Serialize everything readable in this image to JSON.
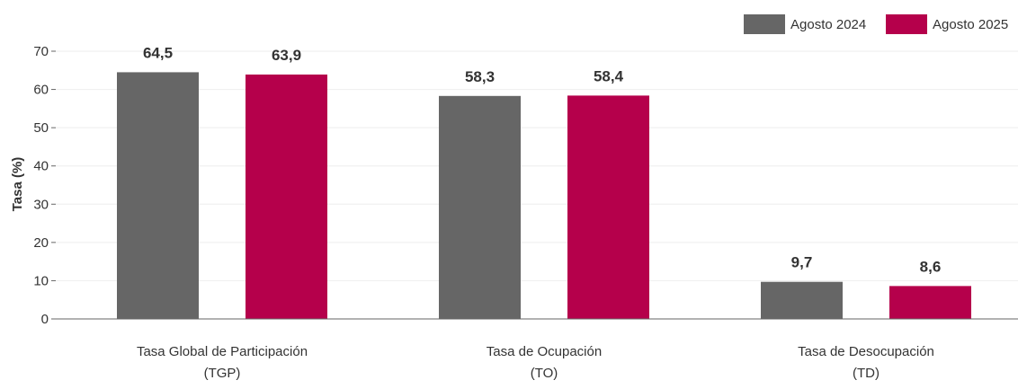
{
  "chart_data": {
    "type": "bar",
    "ylabel": "Tasa (%)",
    "ylim": [
      0,
      70
    ],
    "yticks": [
      0,
      10,
      20,
      30,
      40,
      50,
      60,
      70
    ],
    "grid": true,
    "legend_position": "top-right",
    "categories": [
      [
        "Tasa Global de Participación",
        "(TGP)"
      ],
      [
        "Tasa de Ocupación",
        "(TO)"
      ],
      [
        "Tasa de Desocupación",
        "(TD)"
      ]
    ],
    "series": [
      {
        "name": "Agosto 2024",
        "color": "#666666",
        "values": [
          64.5,
          58.3,
          9.7
        ],
        "value_labels": [
          "64,5",
          "58,3",
          "9,7"
        ]
      },
      {
        "name": "Agosto 2025",
        "color": "#b5004b",
        "values": [
          63.9,
          58.4,
          8.6
        ],
        "value_labels": [
          "63,9",
          "58,4",
          "8,6"
        ]
      }
    ]
  }
}
